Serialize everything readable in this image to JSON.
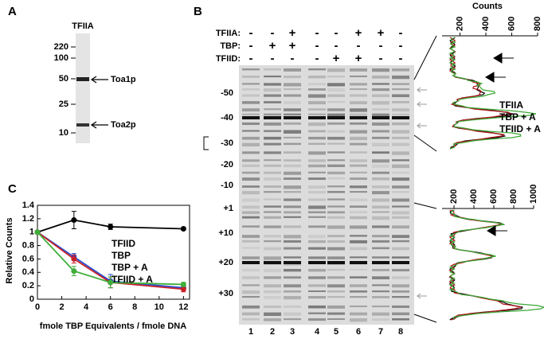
{
  "panel_a": {
    "letter": "A",
    "lane_label": "TFIIA",
    "markers": [
      "220",
      "100",
      "50",
      "25",
      "10"
    ],
    "bands": [
      "Toa1p",
      "Toa2p"
    ]
  },
  "panel_b": {
    "letter": "B",
    "row_labels": [
      "TFIIA:",
      "TBP:",
      "TFIID:"
    ],
    "conditions": [
      [
        "-",
        "-",
        "+",
        "-",
        "-",
        "+",
        "+",
        "-"
      ],
      [
        "-",
        "+",
        "+",
        "-",
        "-",
        "-",
        "-",
        "-"
      ],
      [
        "-",
        "-",
        "-",
        "-",
        "+",
        "+",
        "-",
        "-"
      ]
    ],
    "positions": [
      "-50",
      "-40",
      "-30",
      "-20",
      "-10",
      "+1",
      "+10",
      "+20",
      "+30"
    ],
    "lanes": [
      "1",
      "2",
      "3",
      "4",
      "5",
      "6",
      "7",
      "8"
    ],
    "traces": {
      "axis_title": "Counts",
      "legend": [
        {
          "name": "TFIIA",
          "color": "#000000"
        },
        {
          "name": "TBP + A",
          "color": "#b0141c"
        },
        {
          "name": "TFIID + A",
          "color": "#3aa835"
        }
      ],
      "plots": [
        {
          "xlim": [
            0,
            800
          ],
          "xticks": [
            200,
            400,
            600,
            800
          ]
        },
        {
          "xlim": [
            0,
            1000
          ],
          "xticks": [
            200,
            400,
            600,
            800,
            1000
          ]
        }
      ]
    }
  },
  "chart_data": {
    "type": "line",
    "letter": "C",
    "x_label": "fmole TBP Equivalents / fmole DNA",
    "y_label": "Relative Counts",
    "x": [
      0,
      3,
      6,
      12
    ],
    "xlim": [
      0,
      12.5
    ],
    "xticks": [
      0,
      2,
      4,
      6,
      8,
      10,
      12
    ],
    "ylim": [
      0,
      1.4
    ],
    "yticks": [
      0,
      0.2,
      0.4,
      0.6,
      0.8,
      1,
      1.2,
      1.4
    ],
    "series": [
      {
        "name": "TFIID",
        "color": "#000000",
        "values": [
          1,
          1.18,
          1.08,
          1.05
        ],
        "errors": [
          null,
          0.13,
          0.04,
          0.02
        ]
      },
      {
        "name": "TBP",
        "color": "#2a4fd0",
        "values": [
          1,
          0.63,
          0.27,
          0.17
        ],
        "errors": [
          null,
          0.05,
          0.1,
          null
        ]
      },
      {
        "name": "TBP + A",
        "color": "#c8202a",
        "values": [
          1,
          0.6,
          0.25,
          0.15
        ],
        "errors": [
          null,
          0.06,
          0.08,
          0.04
        ]
      },
      {
        "name": "TFIID + A",
        "color": "#3fae3a",
        "values": [
          1,
          0.42,
          0.25,
          0.22
        ],
        "errors": [
          null,
          0.07,
          0.08,
          0.03
        ]
      }
    ]
  }
}
